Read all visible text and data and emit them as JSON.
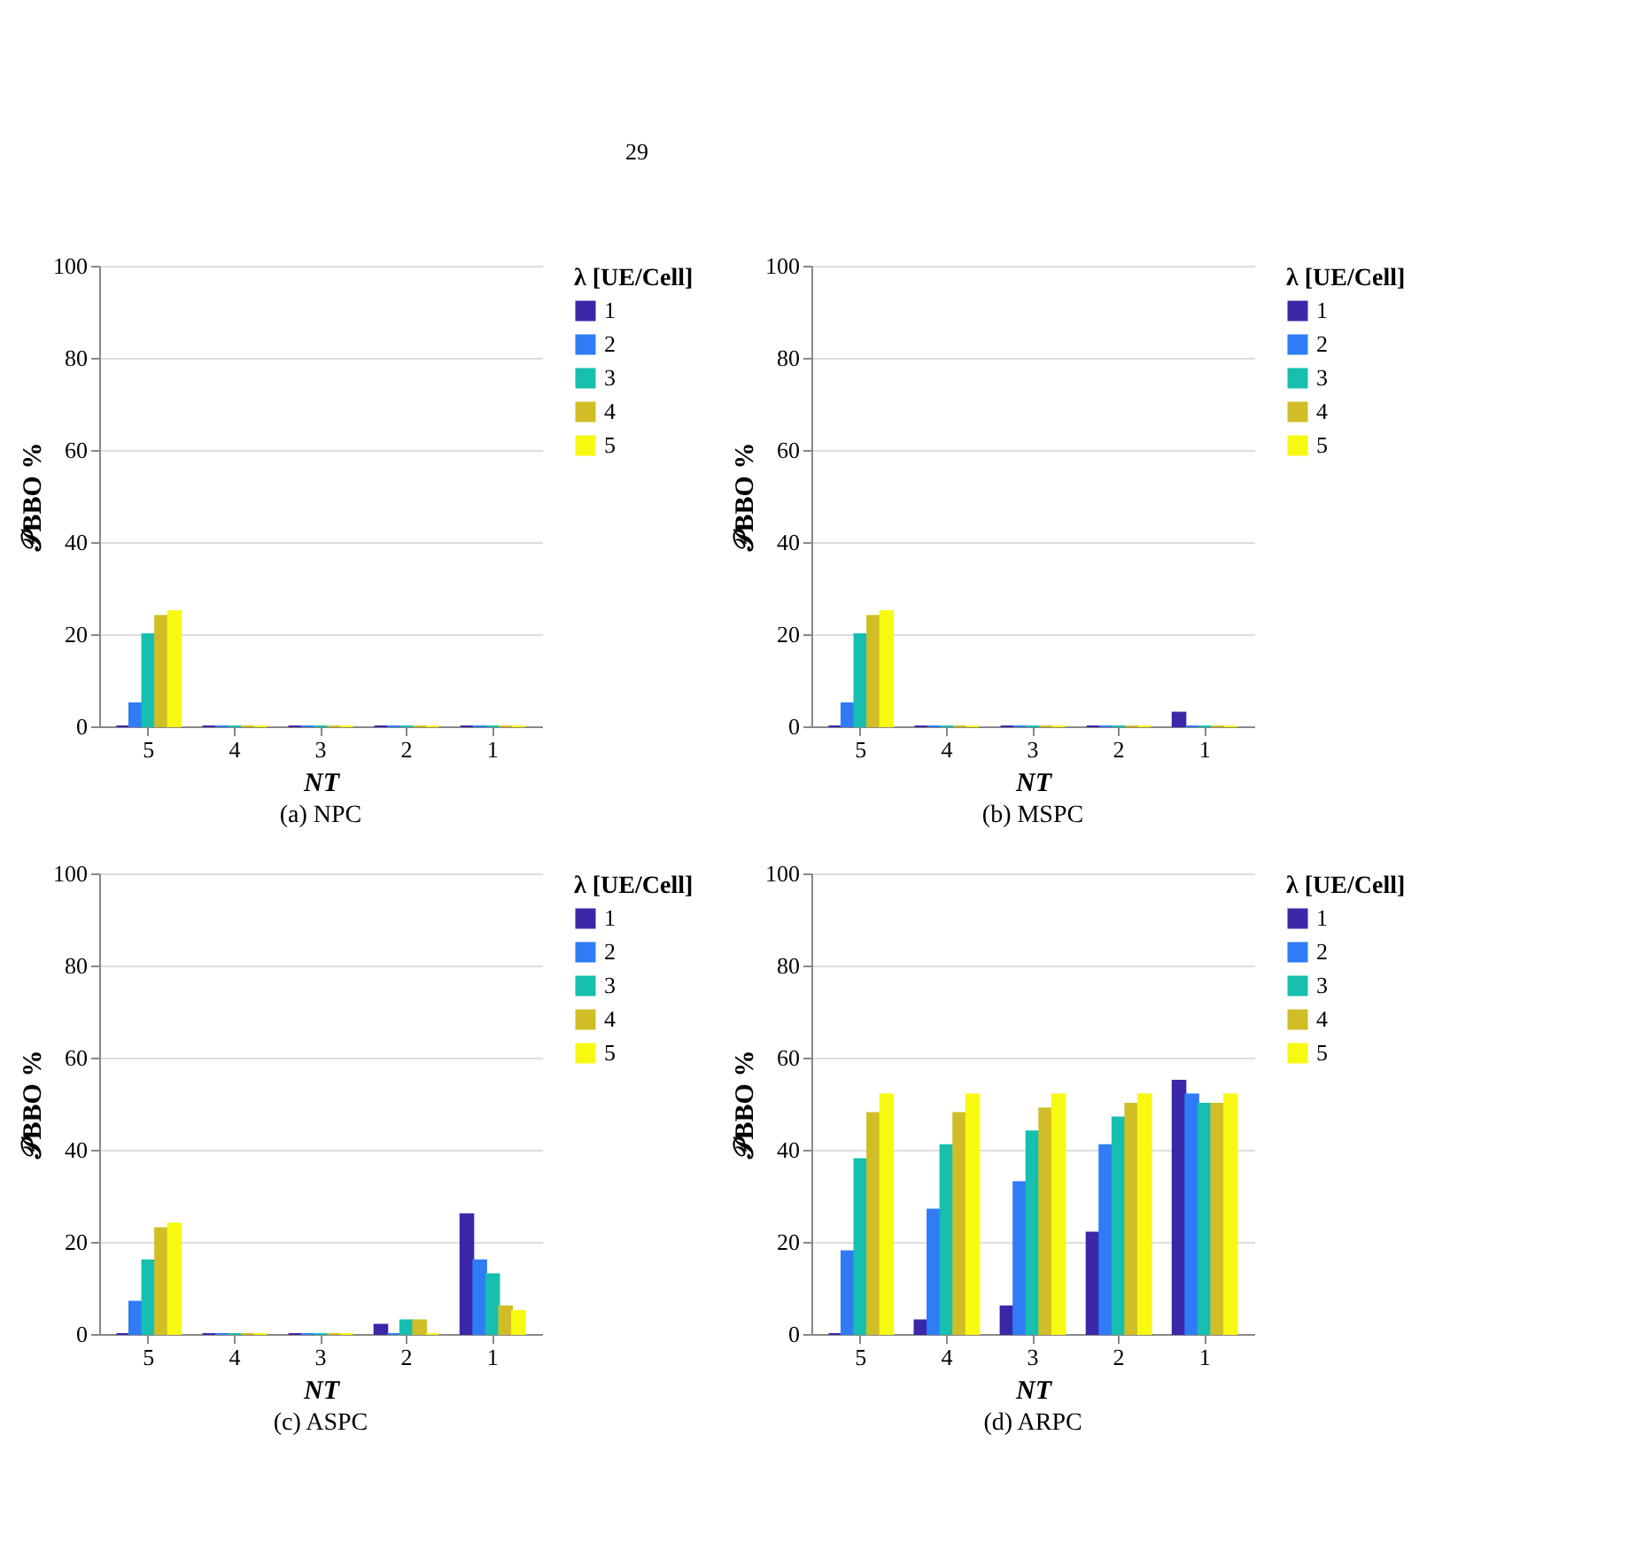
{
  "chart_data": [
    {
      "type": "bar",
      "title": "(a)  NPC",
      "xlabel": "NT",
      "ylabel": "𝒫BBO %",
      "legend_title": "λ [UE/Cell]",
      "annotations": [
        "29"
      ],
      "categories": [
        "5",
        "4",
        "3",
        "2",
        "1"
      ],
      "ylim": [
        0,
        100
      ],
      "yticks": [
        0,
        20,
        40,
        60,
        80,
        100
      ],
      "grid": "y",
      "legend": "right",
      "series": [
        {
          "name": "1",
          "color": "#3b28a8",
          "values": [
            0,
            0,
            0,
            0,
            0
          ]
        },
        {
          "name": "2",
          "color": "#2f7cf6",
          "values": [
            5,
            0,
            0,
            0,
            0
          ]
        },
        {
          "name": "3",
          "color": "#16bfb0",
          "values": [
            20,
            0,
            0,
            0,
            0
          ]
        },
        {
          "name": "4",
          "color": "#d1be27",
          "values": [
            24,
            0,
            0,
            0,
            0
          ]
        },
        {
          "name": "5",
          "color": "#f8f912",
          "values": [
            25,
            0,
            0,
            0,
            0
          ]
        }
      ]
    },
    {
      "type": "bar",
      "title": "(b)  MSPC",
      "xlabel": "NT",
      "ylabel": "𝒫BBO %",
      "legend_title": "λ [UE/Cell]",
      "categories": [
        "5",
        "4",
        "3",
        "2",
        "1"
      ],
      "ylim": [
        0,
        100
      ],
      "yticks": [
        0,
        20,
        40,
        60,
        80,
        100
      ],
      "grid": "y",
      "legend": "right",
      "series": [
        {
          "name": "1",
          "color": "#3b28a8",
          "values": [
            0,
            0,
            0,
            0,
            3
          ]
        },
        {
          "name": "2",
          "color": "#2f7cf6",
          "values": [
            5,
            0,
            0,
            0,
            0
          ]
        },
        {
          "name": "3",
          "color": "#16bfb0",
          "values": [
            20,
            0,
            0,
            0,
            0
          ]
        },
        {
          "name": "4",
          "color": "#d1be27",
          "values": [
            24,
            0,
            0,
            0,
            0
          ]
        },
        {
          "name": "5",
          "color": "#f8f912",
          "values": [
            25,
            0,
            0,
            0,
            0
          ]
        }
      ]
    },
    {
      "type": "bar",
      "title": "(c)  ASPC",
      "xlabel": "NT",
      "ylabel": "𝒫BBO %",
      "legend_title": "λ [UE/Cell]",
      "categories": [
        "5",
        "4",
        "3",
        "2",
        "1"
      ],
      "ylim": [
        0,
        100
      ],
      "yticks": [
        0,
        20,
        40,
        60,
        80,
        100
      ],
      "grid": "y",
      "legend": "right",
      "series": [
        {
          "name": "1",
          "color": "#3b28a8",
          "values": [
            0,
            0,
            0,
            2,
            26
          ]
        },
        {
          "name": "2",
          "color": "#2f7cf6",
          "values": [
            7,
            0,
            0,
            0,
            16
          ]
        },
        {
          "name": "3",
          "color": "#16bfb0",
          "values": [
            16,
            0,
            0,
            3,
            13
          ]
        },
        {
          "name": "4",
          "color": "#d1be27",
          "values": [
            23,
            0,
            0,
            3,
            6
          ]
        },
        {
          "name": "5",
          "color": "#f8f912",
          "values": [
            24,
            0,
            0,
            0,
            5
          ]
        }
      ]
    },
    {
      "type": "bar",
      "title": "(d)  ARPC",
      "xlabel": "NT",
      "ylabel": "𝒫BBO %",
      "legend_title": "λ [UE/Cell]",
      "categories": [
        "5",
        "4",
        "3",
        "2",
        "1"
      ],
      "ylim": [
        0,
        100
      ],
      "yticks": [
        0,
        20,
        40,
        60,
        80,
        100
      ],
      "grid": "y",
      "legend": "right",
      "series": [
        {
          "name": "1",
          "color": "#3b28a8",
          "values": [
            0,
            3,
            6,
            22,
            55
          ]
        },
        {
          "name": "2",
          "color": "#2f7cf6",
          "values": [
            18,
            27,
            33,
            41,
            52
          ]
        },
        {
          "name": "3",
          "color": "#16bfb0",
          "values": [
            38,
            41,
            44,
            47,
            50
          ]
        },
        {
          "name": "4",
          "color": "#d1be27",
          "values": [
            48,
            48,
            49,
            50,
            50
          ]
        },
        {
          "name": "5",
          "color": "#f8f912",
          "values": [
            52,
            52,
            52,
            52,
            52
          ]
        }
      ]
    }
  ]
}
